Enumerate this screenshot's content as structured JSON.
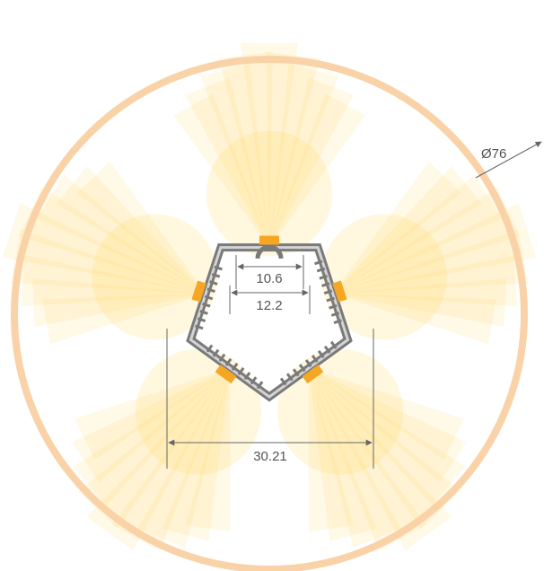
{
  "dimensions": {
    "outer_diameter": "Ø76",
    "inner_slot_width": "10.6",
    "outer_slot_width": "12.2",
    "profile_width": "30.21"
  },
  "colors": {
    "ring": "#F9D2A8",
    "glow": "#FFD24A",
    "led": "#F5A623",
    "profile": "#7A7A7A",
    "diffuser": "#D4D4D4",
    "dimension": "#666666"
  },
  "led_count": 5
}
